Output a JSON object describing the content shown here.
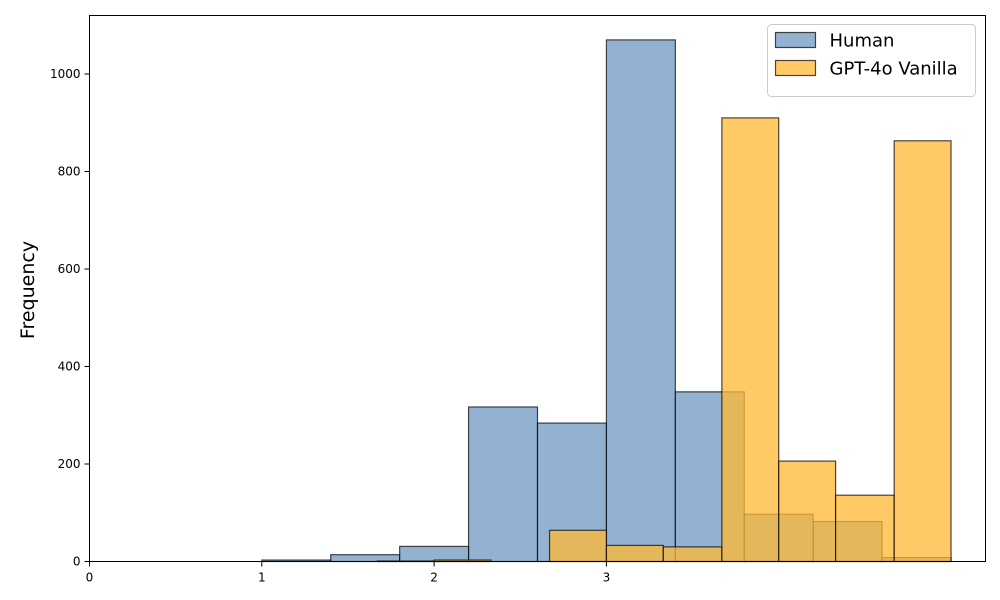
{
  "chart_data": {
    "type": "bar",
    "title": "",
    "xlabel": "",
    "ylabel": "Frequency",
    "xlim": [
      0,
      5.2
    ],
    "ylim": [
      0,
      1120
    ],
    "x_ticks": [
      0,
      1,
      2,
      3
    ],
    "y_ticks": [
      0,
      200,
      400,
      600,
      800,
      1000
    ],
    "grid": false,
    "legend_position": "top-right",
    "series": [
      {
        "name": "Human",
        "color": "#6f98c2",
        "bins": [
          {
            "x0": 1.0,
            "x1": 1.4,
            "value": 3
          },
          {
            "x0": 1.4,
            "x1": 1.8,
            "value": 14
          },
          {
            "x0": 1.8,
            "x1": 2.2,
            "value": 31
          },
          {
            "x0": 2.2,
            "x1": 2.6,
            "value": 317
          },
          {
            "x0": 2.6,
            "x1": 3.0,
            "value": 284
          },
          {
            "x0": 3.0,
            "x1": 3.4,
            "value": 1070
          },
          {
            "x0": 3.4,
            "x1": 3.8,
            "value": 348
          },
          {
            "x0": 3.8,
            "x1": 4.2,
            "value": 97
          },
          {
            "x0": 4.2,
            "x1": 4.6,
            "value": 82
          },
          {
            "x0": 4.6,
            "x1": 5.0,
            "value": 8
          }
        ]
      },
      {
        "name": "GPT-4o Vanilla",
        "color": "#ffb833",
        "bins": [
          {
            "x0": 1.67,
            "x1": 2.0,
            "value": 1
          },
          {
            "x0": 2.0,
            "x1": 2.33,
            "value": 3
          },
          {
            "x0": 2.33,
            "x1": 2.67,
            "value": 0
          },
          {
            "x0": 2.67,
            "x1": 3.0,
            "value": 64
          },
          {
            "x0": 3.0,
            "x1": 3.33,
            "value": 33
          },
          {
            "x0": 3.33,
            "x1": 3.67,
            "value": 30
          },
          {
            "x0": 3.67,
            "x1": 4.0,
            "value": 910
          },
          {
            "x0": 4.0,
            "x1": 4.33,
            "value": 206
          },
          {
            "x0": 4.33,
            "x1": 4.67,
            "value": 136
          },
          {
            "x0": 4.67,
            "x1": 5.0,
            "value": 863
          }
        ]
      }
    ]
  }
}
